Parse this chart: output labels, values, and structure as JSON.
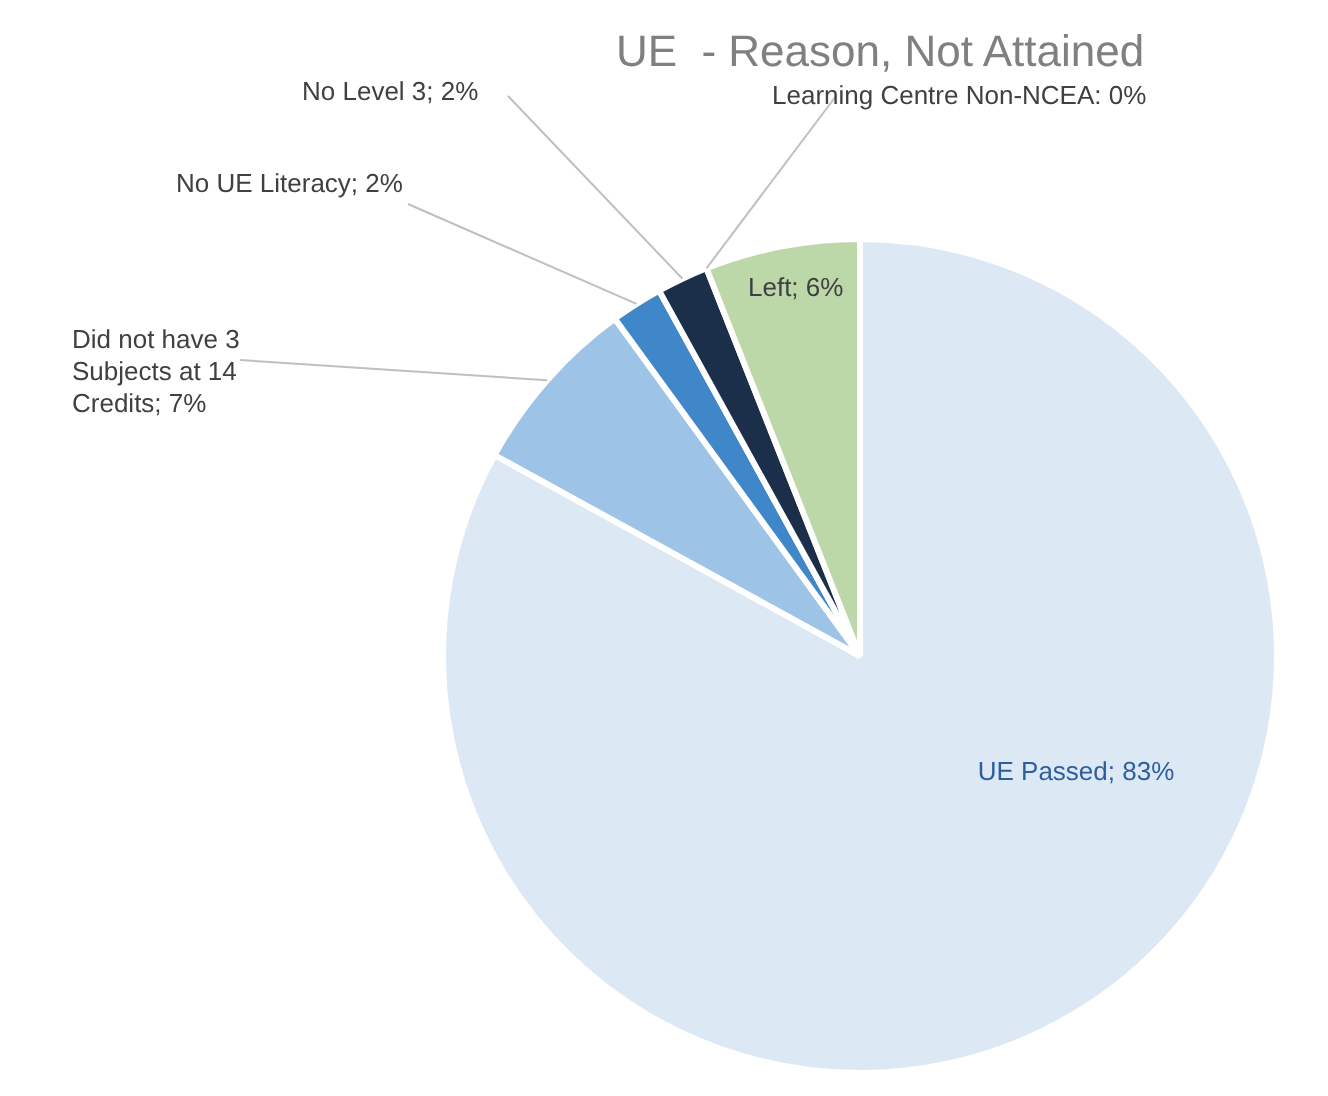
{
  "chart_data": {
    "type": "pie",
    "title": "UE  - Reason, Not Attained",
    "categories": [
      "UE Passed",
      "Did not have 3 Subjects at 14 Credits",
      "No UE Literacy",
      "No Level 3",
      "Learning Centre Non-NCEA",
      "Left"
    ],
    "values": [
      83,
      7,
      2,
      2,
      0,
      6
    ],
    "colors": [
      "#dce9f5",
      "#9dc3e6",
      "#3f87c8",
      "#1b2f4a",
      "#5a8a3a",
      "#bcd7a8"
    ],
    "value_labels": [
      "; 83%",
      "; 7%",
      "; 2%",
      "; 2%",
      ": 0%",
      "; 6%"
    ]
  }
}
